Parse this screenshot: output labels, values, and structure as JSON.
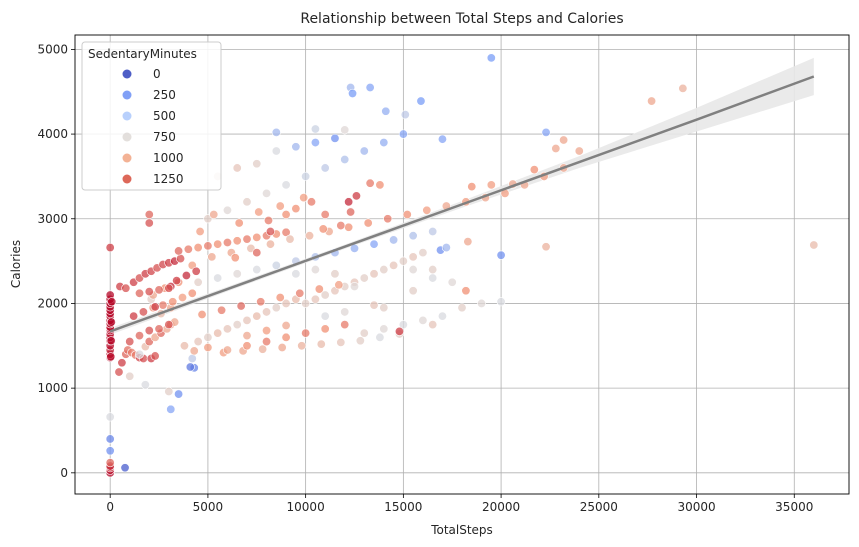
{
  "chart_data": {
    "type": "scatter",
    "title": "Relationship between Total Steps and Calories",
    "xlabel": "TotalSteps",
    "ylabel": "Calories",
    "xlim": [
      -1800,
      37800
    ],
    "ylim": [
      -250,
      5170
    ],
    "xticks": [
      0,
      5000,
      10000,
      15000,
      20000,
      25000,
      30000,
      35000
    ],
    "yticks": [
      0,
      1000,
      2000,
      3000,
      4000,
      5000
    ],
    "grid": true,
    "color_variable": "SedentaryMinutes",
    "colormap": "coolwarm",
    "legend": {
      "title": "SedentaryMinutes",
      "placement": "top-left",
      "entries": [
        {
          "label": "0",
          "color": "#3b4cc0"
        },
        {
          "label": "250",
          "color": "#7396f5"
        },
        {
          "label": "500",
          "color": "#b0cbfc"
        },
        {
          "label": "750",
          "color": "#e0dbd8"
        },
        {
          "label": "1000",
          "color": "#f2aa8a"
        },
        {
          "label": "1250",
          "color": "#d95847"
        }
      ]
    },
    "regression": {
      "color": "#808080",
      "ci_color": "#e8e8e8",
      "x": [
        0,
        6000,
        12000,
        18000,
        24000,
        30000,
        36000
      ],
      "y": [
        1670,
        2170,
        2670,
        3170,
        3670,
        4170,
        4680
      ],
      "ci_halfwidth": [
        40,
        28,
        25,
        40,
        70,
        140,
        220
      ]
    },
    "points": [
      [
        0,
        0,
        1440
      ],
      [
        0,
        30,
        1400
      ],
      [
        0,
        60,
        1300
      ],
      [
        0,
        80,
        1350
      ],
      [
        0,
        120,
        1200
      ],
      [
        0,
        260,
        300
      ],
      [
        0,
        400,
        250
      ],
      [
        0,
        660,
        700
      ],
      [
        0,
        1360,
        1420
      ],
      [
        0,
        1400,
        1400
      ],
      [
        0,
        1450,
        1380
      ],
      [
        0,
        1500,
        1420
      ],
      [
        0,
        1560,
        1390
      ],
      [
        0,
        1600,
        1400
      ],
      [
        0,
        1640,
        1410
      ],
      [
        0,
        1680,
        1430
      ],
      [
        0,
        1700,
        1440
      ],
      [
        0,
        1720,
        1420
      ],
      [
        0,
        1760,
        1400
      ],
      [
        0,
        1800,
        1440
      ],
      [
        0,
        1850,
        1420
      ],
      [
        0,
        1880,
        1440
      ],
      [
        0,
        1920,
        1430
      ],
      [
        0,
        1960,
        1440
      ],
      [
        0,
        2000,
        1440
      ],
      [
        0,
        2050,
        1440
      ],
      [
        0,
        2100,
        1430
      ],
      [
        0,
        2660,
        1300
      ],
      [
        30,
        1370,
        1420
      ],
      [
        50,
        1560,
        1440
      ],
      [
        60,
        1780,
        1440
      ],
      [
        80,
        2020,
        1440
      ],
      [
        760,
        60,
        80
      ],
      [
        450,
        1190,
        1250
      ],
      [
        600,
        1300,
        1300
      ],
      [
        800,
        1400,
        1200
      ],
      [
        900,
        1450,
        1180
      ],
      [
        1100,
        1420,
        1150
      ],
      [
        1300,
        1390,
        1150
      ],
      [
        1500,
        1360,
        1280
      ],
      [
        1700,
        1350,
        1260
      ],
      [
        2100,
        1350,
        1300
      ],
      [
        2300,
        1380,
        1250
      ],
      [
        1800,
        1490,
        900
      ],
      [
        2000,
        1550,
        1200
      ],
      [
        2300,
        1600,
        1000
      ],
      [
        2600,
        1650,
        1200
      ],
      [
        2900,
        1700,
        1000
      ],
      [
        3100,
        1750,
        1100
      ],
      [
        3300,
        1780,
        1000
      ],
      [
        500,
        2200,
        1300
      ],
      [
        800,
        2180,
        1250
      ],
      [
        1200,
        2250,
        1300
      ],
      [
        1500,
        2300,
        1250
      ],
      [
        1800,
        2350,
        1300
      ],
      [
        2100,
        2380,
        1280
      ],
      [
        2400,
        2420,
        1250
      ],
      [
        2700,
        2460,
        1280
      ],
      [
        3000,
        2480,
        1300
      ],
      [
        3300,
        2500,
        1350
      ],
      [
        3600,
        2530,
        1250
      ],
      [
        2000,
        2950,
        1250
      ],
      [
        2000,
        3050,
        1200
      ],
      [
        1000,
        1140,
        800
      ],
      [
        1800,
        1040,
        700
      ],
      [
        3000,
        960,
        800
      ],
      [
        3100,
        750,
        400
      ],
      [
        3500,
        930,
        300
      ],
      [
        4300,
        1240,
        250
      ],
      [
        4100,
        1250,
        200
      ],
      [
        2600,
        1880,
        900
      ],
      [
        3100,
        1950,
        1000
      ],
      [
        2100,
        2050,
        800
      ],
      [
        4200,
        1350,
        600
      ],
      [
        1500,
        1400,
        700
      ],
      [
        2200,
        2100,
        1000
      ],
      [
        2800,
        2180,
        1100
      ],
      [
        3500,
        2250,
        1100
      ],
      [
        3500,
        2620,
        1200
      ],
      [
        4000,
        2640,
        1150
      ],
      [
        4500,
        2660,
        1100
      ],
      [
        5000,
        2680,
        1150
      ],
      [
        5500,
        2700,
        1100
      ],
      [
        6000,
        2720,
        1150
      ],
      [
        6500,
        2740,
        1100
      ],
      [
        7000,
        2760,
        1150
      ],
      [
        7500,
        2780,
        1100
      ],
      [
        8000,
        2800,
        1150
      ],
      [
        8500,
        2820,
        1100
      ],
      [
        9000,
        2840,
        1150
      ],
      [
        4200,
        2450,
        1050
      ],
      [
        5200,
        2550,
        1000
      ],
      [
        6200,
        2600,
        1000
      ],
      [
        7200,
        2650,
        900
      ],
      [
        8200,
        2700,
        950
      ],
      [
        9200,
        2760,
        900
      ],
      [
        10200,
        2800,
        950
      ],
      [
        11200,
        2850,
        1000
      ],
      [
        12200,
        2900,
        1100
      ],
      [
        13200,
        2950,
        1100
      ],
      [
        14200,
        3000,
        1150
      ],
      [
        15200,
        3050,
        1100
      ],
      [
        16200,
        3100,
        1050
      ],
      [
        17200,
        3150,
        1000
      ],
      [
        18200,
        3200,
        1050
      ],
      [
        19200,
        3250,
        1000
      ],
      [
        20200,
        3300,
        1050
      ],
      [
        21200,
        3400,
        1000
      ],
      [
        22200,
        3500,
        1050
      ],
      [
        23200,
        3600,
        1000
      ],
      [
        24000,
        3800,
        1000
      ],
      [
        22800,
        3830,
        1000
      ],
      [
        23200,
        3930,
        1000
      ],
      [
        21700,
        3580,
        1100
      ],
      [
        20600,
        3410,
        1000
      ],
      [
        19500,
        3400,
        1050
      ],
      [
        18500,
        3380,
        1100
      ],
      [
        3800,
        1500,
        900
      ],
      [
        4500,
        1550,
        850
      ],
      [
        5000,
        1600,
        800
      ],
      [
        5500,
        1650,
        900
      ],
      [
        6000,
        1700,
        850
      ],
      [
        6500,
        1750,
        800
      ],
      [
        7000,
        1800,
        850
      ],
      [
        7500,
        1850,
        900
      ],
      [
        8000,
        1900,
        850
      ],
      [
        8500,
        1950,
        800
      ],
      [
        9000,
        2000,
        850
      ],
      [
        9500,
        2050,
        900
      ],
      [
        10000,
        2000,
        800
      ],
      [
        10500,
        2050,
        850
      ],
      [
        11000,
        2100,
        800
      ],
      [
        11500,
        2150,
        850
      ],
      [
        12000,
        2200,
        800
      ],
      [
        12500,
        2250,
        850
      ],
      [
        13000,
        2300,
        800
      ],
      [
        13500,
        2350,
        850
      ],
      [
        14000,
        2400,
        800
      ],
      [
        14500,
        2450,
        850
      ],
      [
        15000,
        2500,
        800
      ],
      [
        15500,
        2550,
        850
      ],
      [
        16000,
        2600,
        800
      ],
      [
        5800,
        1420,
        1050
      ],
      [
        6800,
        1440,
        1000
      ],
      [
        7800,
        1460,
        950
      ],
      [
        8800,
        1480,
        1000
      ],
      [
        9800,
        1500,
        950
      ],
      [
        10800,
        1520,
        900
      ],
      [
        11800,
        1540,
        850
      ],
      [
        12800,
        1560,
        800
      ],
      [
        13800,
        1600,
        700
      ],
      [
        14800,
        1640,
        800
      ],
      [
        4700,
        1870,
        1100
      ],
      [
        5700,
        1920,
        1150
      ],
      [
        6700,
        1970,
        1200
      ],
      [
        7700,
        2020,
        1150
      ],
      [
        8700,
        2070,
        1100
      ],
      [
        9700,
        2120,
        1150
      ],
      [
        10700,
        2170,
        1100
      ],
      [
        11700,
        2220,
        1050
      ],
      [
        4500,
        2250,
        800
      ],
      [
        5500,
        2300,
        700
      ],
      [
        6500,
        2350,
        750
      ],
      [
        7500,
        2400,
        700
      ],
      [
        8500,
        2450,
        650
      ],
      [
        9500,
        2500,
        600
      ],
      [
        10500,
        2550,
        550
      ],
      [
        11500,
        2600,
        500
      ],
      [
        12500,
        2650,
        450
      ],
      [
        13500,
        2700,
        400
      ],
      [
        14500,
        2750,
        500
      ],
      [
        15500,
        2800,
        550
      ],
      [
        16500,
        2850,
        600
      ],
      [
        5000,
        3000,
        800
      ],
      [
        6000,
        3100,
        750
      ],
      [
        7000,
        3200,
        800
      ],
      [
        8000,
        3300,
        750
      ],
      [
        9000,
        3400,
        700
      ],
      [
        10000,
        3500,
        650
      ],
      [
        11000,
        3600,
        600
      ],
      [
        12000,
        3700,
        550
      ],
      [
        13000,
        3800,
        500
      ],
      [
        14000,
        3900,
        450
      ],
      [
        15000,
        4000,
        400
      ],
      [
        5500,
        3500,
        800
      ],
      [
        6500,
        3600,
        850
      ],
      [
        7500,
        3650,
        800
      ],
      [
        8500,
        3800,
        700
      ],
      [
        9500,
        3850,
        500
      ],
      [
        10500,
        3900,
        400
      ],
      [
        11500,
        3950,
        300
      ],
      [
        8500,
        4020,
        500
      ],
      [
        10500,
        4060,
        650
      ],
      [
        12000,
        4050,
        750
      ],
      [
        12300,
        4550,
        500
      ],
      [
        13300,
        4550,
        400
      ],
      [
        12400,
        4480,
        350
      ],
      [
        14100,
        4270,
        450
      ],
      [
        15100,
        4230,
        600
      ],
      [
        15900,
        4390,
        350
      ],
      [
        17000,
        3940,
        400
      ],
      [
        19500,
        4900,
        350
      ],
      [
        22300,
        4020,
        400
      ],
      [
        20000,
        2570,
        300
      ],
      [
        16900,
        2630,
        300
      ],
      [
        17200,
        2660,
        500
      ],
      [
        13000,
        1650,
        800
      ],
      [
        14000,
        1700,
        750
      ],
      [
        15000,
        1750,
        700
      ],
      [
        16000,
        1800,
        750
      ],
      [
        17000,
        1850,
        700
      ],
      [
        18000,
        1950,
        800
      ],
      [
        19000,
        2000,
        750
      ],
      [
        20000,
        2020,
        700
      ],
      [
        12000,
        1900,
        750
      ],
      [
        11000,
        1850,
        700
      ],
      [
        16500,
        1750,
        850
      ],
      [
        15500,
        2150,
        800
      ],
      [
        16500,
        2300,
        700
      ],
      [
        17500,
        2250,
        750
      ],
      [
        14000,
        1950,
        800
      ],
      [
        13500,
        1980,
        850
      ],
      [
        15500,
        2400,
        750
      ],
      [
        16500,
        2400,
        800
      ],
      [
        12500,
        2200,
        750
      ],
      [
        11500,
        2350,
        800
      ],
      [
        10500,
        2400,
        750
      ],
      [
        9500,
        2350,
        700
      ],
      [
        18200,
        2150,
        1100
      ],
      [
        18300,
        2730,
        1000
      ],
      [
        22300,
        2670,
        950
      ],
      [
        27700,
        4390,
        1000
      ],
      [
        29300,
        4540,
        950
      ],
      [
        36000,
        2690,
        900
      ],
      [
        14800,
        1670,
        1300
      ],
      [
        13800,
        3400,
        1100
      ],
      [
        13300,
        3420,
        1150
      ],
      [
        12600,
        3270,
        1300
      ],
      [
        12200,
        3200,
        1350
      ],
      [
        8200,
        2850,
        1250
      ],
      [
        7500,
        2600,
        1200
      ],
      [
        6400,
        2540,
        1100
      ],
      [
        8100,
        2980,
        1150
      ],
      [
        9500,
        3120,
        1100
      ],
      [
        11000,
        3050,
        1150
      ],
      [
        12300,
        3080,
        1200
      ],
      [
        11800,
        2920,
        1150
      ],
      [
        10900,
        2880,
        1100
      ],
      [
        10300,
        3200,
        1150
      ],
      [
        9900,
        3250,
        1050
      ],
      [
        9000,
        3050,
        1100
      ],
      [
        8700,
        3150,
        1050
      ],
      [
        5300,
        3050,
        1000
      ],
      [
        4600,
        2850,
        1050
      ],
      [
        6600,
        2950,
        1100
      ],
      [
        7600,
        3080,
        1050
      ],
      [
        2200,
        1950,
        1100
      ],
      [
        2700,
        1980,
        1150
      ],
      [
        3200,
        2020,
        1100
      ],
      [
        3700,
        2070,
        1050
      ],
      [
        4200,
        2120,
        1100
      ],
      [
        1000,
        1550,
        1250
      ],
      [
        1500,
        1620,
        1200
      ],
      [
        2000,
        1680,
        1250
      ],
      [
        2500,
        1700,
        1200
      ],
      [
        3000,
        1750,
        1250
      ],
      [
        1200,
        1850,
        1300
      ],
      [
        1700,
        1900,
        1250
      ],
      [
        2300,
        1960,
        1300
      ],
      [
        3100,
        2200,
        1350
      ],
      [
        3400,
        2270,
        1300
      ],
      [
        3900,
        2330,
        1350
      ],
      [
        4400,
        2380,
        1300
      ],
      [
        1500,
        2120,
        1200
      ],
      [
        2000,
        2140,
        1250
      ],
      [
        2500,
        2160,
        1200
      ],
      [
        3000,
        2180,
        1250
      ],
      [
        7000,
        1500,
        1100
      ],
      [
        8000,
        1550,
        1150
      ],
      [
        9000,
        1600,
        1100
      ],
      [
        10000,
        1650,
        1150
      ],
      [
        11000,
        1700,
        1100
      ],
      [
        12000,
        1750,
        1150
      ],
      [
        7000,
        1620,
        1000
      ],
      [
        8000,
        1680,
        1050
      ],
      [
        9000,
        1740,
        1000
      ],
      [
        6000,
        1450,
        1000
      ],
      [
        5000,
        1480,
        1050
      ],
      [
        4300,
        1440,
        1000
      ]
    ]
  }
}
